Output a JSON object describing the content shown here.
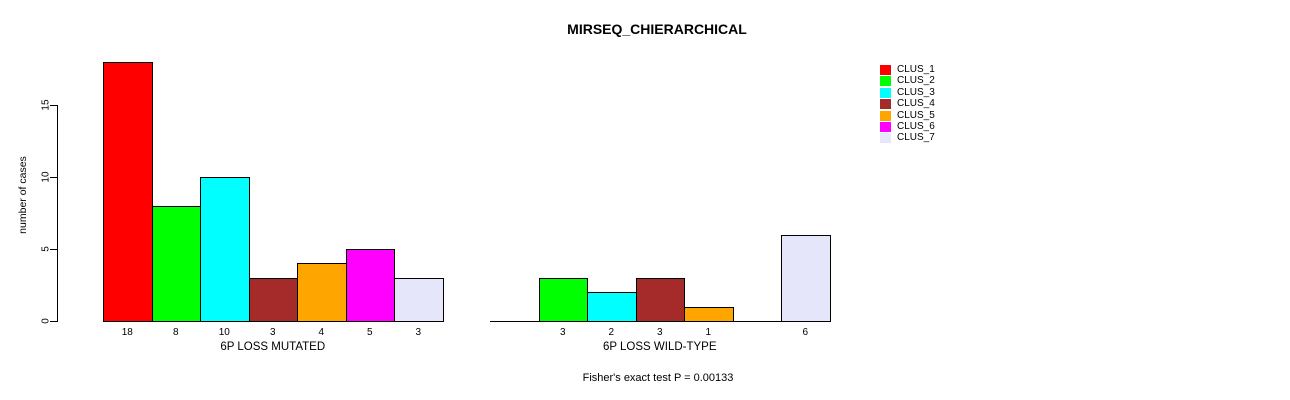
{
  "chart_data": {
    "type": "bar",
    "title": "MIRSEQ_CHIERARCHICAL",
    "ylabel": "number of cases",
    "xlabel": "",
    "annotation": "Fisher's exact test P = 0.00133",
    "yticks": [
      0,
      5,
      10,
      15
    ],
    "ylim": [
      0,
      18
    ],
    "grid": false,
    "legend_position": "right-outside",
    "background_color": "#FFFFFF",
    "axis_color": "#000000",
    "series": [
      {
        "name": "CLUS_1",
        "color": "#FF0000"
      },
      {
        "name": "CLUS_2",
        "color": "#00FF00"
      },
      {
        "name": "CLUS_3",
        "color": "#00FFFF"
      },
      {
        "name": "CLUS_4",
        "color": "#A52A2A"
      },
      {
        "name": "CLUS_5",
        "color": "#FFA500"
      },
      {
        "name": "CLUS_6",
        "color": "#FF00FF"
      },
      {
        "name": "CLUS_7",
        "color": "#E6E6FA"
      }
    ],
    "groups": [
      {
        "label": "6P LOSS MUTATED",
        "values": [
          18,
          8,
          10,
          3,
          4,
          5,
          3
        ],
        "bar_labels": [
          "18",
          "8",
          "10",
          "3",
          "4",
          "5",
          "3"
        ]
      },
      {
        "label": "6P LOSS WILD-TYPE",
        "values": [
          0,
          3,
          2,
          3,
          1,
          0,
          6
        ],
        "bar_labels": [
          "",
          "3",
          "2",
          "3",
          "1",
          "",
          "6"
        ]
      }
    ]
  }
}
